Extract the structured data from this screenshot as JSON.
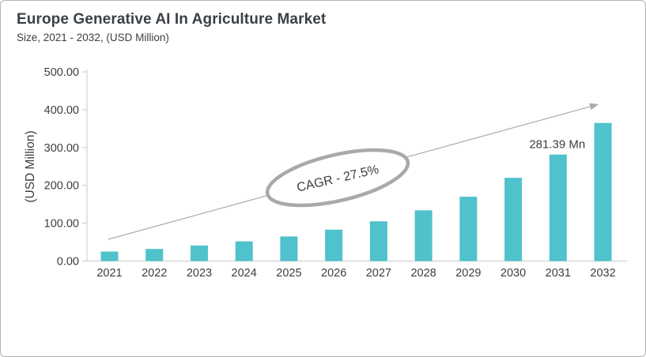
{
  "header": {
    "title": "Europe Generative AI In Agriculture Market",
    "subtitle": "Size, 2021 - 2032, (USD Million)"
  },
  "chart_data": {
    "type": "bar",
    "title": "Europe Generative AI In Agriculture Market",
    "subtitle": "Size, 2021 - 2032, (USD Million)",
    "categories": [
      "2021",
      "2022",
      "2023",
      "2024",
      "2025",
      "2026",
      "2027",
      "2028",
      "2029",
      "2030",
      "2031",
      "2032"
    ],
    "values": [
      25,
      32,
      41,
      52,
      65,
      83,
      105,
      134,
      170,
      220,
      281.39,
      365
    ],
    "xlabel": "",
    "ylabel": "(USD Million)",
    "ylim": [
      0,
      500
    ],
    "ytick_step": 100,
    "ytick_labels": [
      "0.00",
      "100.00",
      "200.00",
      "300.00",
      "400.00",
      "500.00"
    ],
    "grid": false,
    "legend": "none",
    "annotations": {
      "cagr_label": "CAGR - 27.5%",
      "value_label": {
        "text": "281.39 Mn",
        "category": "2031"
      },
      "trend_arrow": true
    }
  },
  "colors": {
    "bar": "#4FC2CC",
    "axis": "#C9C9C9",
    "arrow": "#ACACAC",
    "ellipse_stroke": "#A9A9A9",
    "text": "#3D3D3D",
    "title": "#3B4047",
    "border": "#B3B3B3"
  }
}
